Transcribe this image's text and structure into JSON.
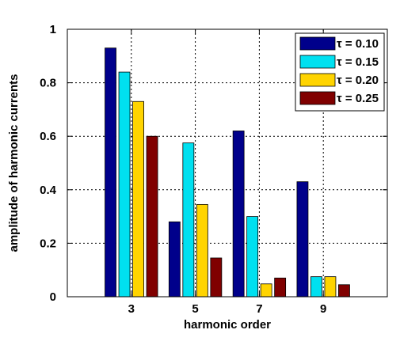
{
  "chart_data": {
    "type": "bar",
    "categories": [
      "3",
      "5",
      "7",
      "9"
    ],
    "series": [
      {
        "name": "τ = 0.10",
        "color": "#00008b",
        "values": [
          0.93,
          0.28,
          0.62,
          0.43
        ]
      },
      {
        "name": "τ = 0.15",
        "color": "#00e0f0",
        "values": [
          0.84,
          0.575,
          0.3,
          0.075
        ]
      },
      {
        "name": "τ = 0.20",
        "color": "#ffd400",
        "values": [
          0.73,
          0.345,
          0.048,
          0.075
        ]
      },
      {
        "name": "τ = 0.25",
        "color": "#800000",
        "values": [
          0.6,
          0.145,
          0.07,
          0.045
        ]
      }
    ],
    "xlabel": "harmonic order",
    "ylabel": "amplitude of harmonic currents",
    "ylim": [
      0,
      1
    ],
    "yticks": [
      0,
      0.2,
      0.4,
      0.6,
      0.8,
      1
    ],
    "ytick_labels": [
      "0",
      "0.2",
      "0.4",
      "0.6",
      "0.8",
      "1"
    ],
    "xlim": [
      1,
      11
    ],
    "grid": true,
    "legend_position": "top-right"
  }
}
